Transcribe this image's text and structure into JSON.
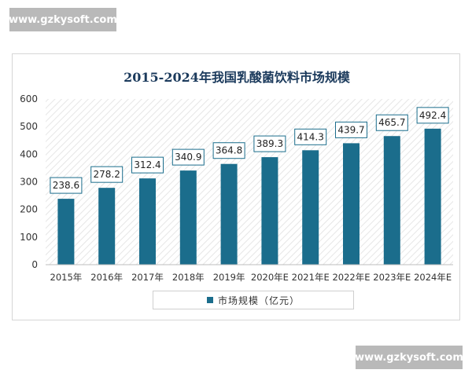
{
  "watermarks": {
    "top": "www.gzkysoft.com",
    "bottom": "www.gzkysoft.com"
  },
  "colors": {
    "bar": "#1b6d8c",
    "title": "#1b3a5c",
    "label_border": "#1b6d8c"
  },
  "chart_data": {
    "type": "bar",
    "title": "2015-2024年我国乳酸菌饮料市场规模",
    "categories": [
      "2015年",
      "2016年",
      "2017年",
      "2018年",
      "2019年",
      "2020年E",
      "2021年E",
      "2022年E",
      "2023年E",
      "2024年E"
    ],
    "series": [
      {
        "name": "市场规模（亿元）",
        "values": [
          238.6,
          278.2,
          312.4,
          340.9,
          364.8,
          389.3,
          414.3,
          439.7,
          465.7,
          492.4
        ]
      }
    ],
    "value_labels": [
      "238.6",
      "278.2",
      "312.4",
      "340.9",
      "364.8",
      "389.3",
      "414.3",
      "439.7",
      "465.7",
      "492.4"
    ],
    "ylim": [
      0,
      600
    ],
    "yticks": [
      0,
      100,
      200,
      300,
      400,
      500,
      600
    ],
    "ytick_labels": [
      "0",
      "100",
      "200",
      "300",
      "400",
      "500",
      "600"
    ],
    "grid": false,
    "background": "diagonal hatch",
    "legend_position": "bottom"
  }
}
